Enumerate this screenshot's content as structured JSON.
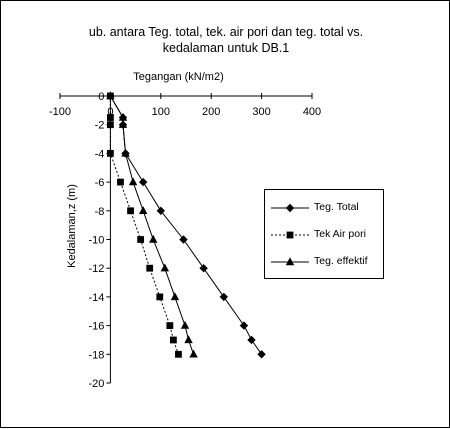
{
  "chart_data": {
    "type": "line",
    "title": "ub. antara Teg. total, tek. air pori dan teg. total vs. kedalaman untuk DB.1",
    "title_lines": [
      "ub. antara Teg. total, tek. air pori dan teg. total vs.",
      "kedalaman untuk DB.1"
    ],
    "xlabel": "Tegangan (kN/m2)",
    "ylabel": "Kedalaman,z (m)",
    "x_axis_position": "top",
    "xlim": [
      -100,
      400
    ],
    "ylim": [
      -20,
      0
    ],
    "x_ticks": [
      -100,
      0,
      100,
      200,
      300,
      400
    ],
    "y_ticks": [
      0,
      -2,
      -4,
      -6,
      -8,
      -10,
      -12,
      -14,
      -16,
      -18,
      -20
    ],
    "grid": false,
    "legend_position": "right",
    "series": [
      {
        "name": "Teg. Total",
        "marker": "diamond",
        "line_style": "solid",
        "color": "#000000",
        "points": [
          [
            0,
            0
          ],
          [
            25,
            -1.5
          ],
          [
            25,
            -2
          ],
          [
            30,
            -4
          ],
          [
            65,
            -6
          ],
          [
            100,
            -8
          ],
          [
            145,
            -10
          ],
          [
            185,
            -12
          ],
          [
            225,
            -14
          ],
          [
            265,
            -16
          ],
          [
            280,
            -17
          ],
          [
            300,
            -18
          ]
        ]
      },
      {
        "name": "Tek Air pori",
        "marker": "square",
        "line_style": "dotted",
        "color": "#000000",
        "points": [
          [
            0,
            0
          ],
          [
            0,
            -1.5
          ],
          [
            0,
            -2
          ],
          [
            0,
            -4
          ],
          [
            20,
            -6
          ],
          [
            40,
            -8
          ],
          [
            60,
            -10
          ],
          [
            78,
            -12
          ],
          [
            98,
            -14
          ],
          [
            118,
            -16
          ],
          [
            125,
            -17
          ],
          [
            135,
            -18
          ]
        ]
      },
      {
        "name": "Teg. effektif",
        "marker": "triangle",
        "line_style": "solid",
        "color": "#000000",
        "points": [
          [
            0,
            0
          ],
          [
            25,
            -1.5
          ],
          [
            25,
            -2
          ],
          [
            30,
            -4
          ],
          [
            45,
            -6
          ],
          [
            65,
            -8
          ],
          [
            85,
            -10
          ],
          [
            108,
            -12
          ],
          [
            128,
            -14
          ],
          [
            148,
            -16
          ],
          [
            155,
            -17
          ],
          [
            165,
            -18
          ]
        ]
      }
    ]
  }
}
